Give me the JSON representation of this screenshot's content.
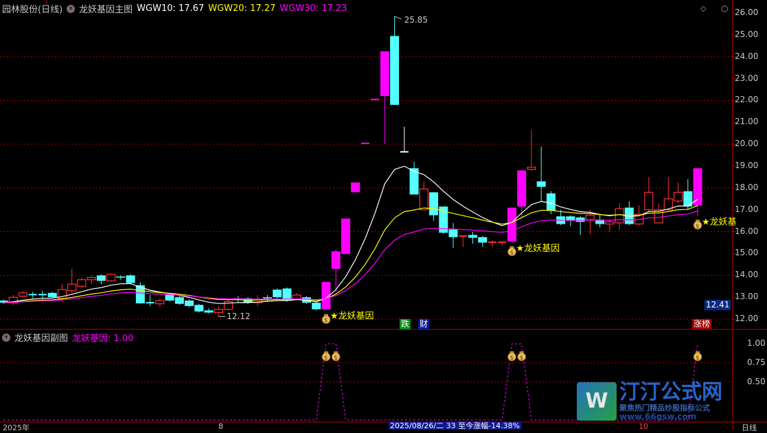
{
  "header": {
    "stock": "园林股份(日线)",
    "indicator": "龙妖基因主图",
    "ma10": "WGW10: 17.67",
    "ma20": "WGW20: 17.27",
    "ma30": "WGW30: 17.23"
  },
  "sub_header": {
    "indicator": "龙妖基因副图",
    "value": "龙妖基因: 1.00"
  },
  "colors": {
    "up": "#ff3232",
    "down": "#54ffff",
    "limit": "#ff00ff",
    "ma10": "#ffffff",
    "ma20": "#ffff00",
    "ma30": "#ff00ff",
    "grid": "#b00000",
    "signal": "#ff00ff"
  },
  "price_axis": [
    "26.00",
    "25.00",
    "24.00",
    "23.00",
    "22.00",
    "21.00",
    "20.00",
    "19.00",
    "18.00",
    "17.00",
    "16.00",
    "15.00",
    "14.00",
    "13.00",
    "12.00"
  ],
  "current_price": "12.41",
  "sub_axis": [
    "1.00",
    "0.75",
    "0.50"
  ],
  "candles": [
    [
      12.85,
      12.9,
      12.7,
      12.75,
      "d"
    ],
    [
      12.75,
      13.1,
      12.65,
      13.0,
      "u"
    ],
    [
      13.05,
      13.3,
      13.0,
      13.2,
      "u"
    ],
    [
      13.1,
      13.25,
      12.95,
      13.12,
      "x"
    ],
    [
      13.1,
      13.3,
      12.9,
      13.12,
      "x"
    ],
    [
      13.2,
      13.25,
      12.95,
      13.0,
      "d"
    ],
    [
      12.95,
      13.6,
      12.8,
      13.35,
      "u"
    ],
    [
      13.3,
      14.3,
      13.2,
      13.6,
      "u"
    ],
    [
      13.5,
      13.9,
      13.4,
      13.8,
      "u"
    ],
    [
      13.8,
      14.0,
      13.6,
      13.9,
      "u"
    ],
    [
      14.0,
      14.05,
      13.6,
      13.75,
      "d"
    ],
    [
      13.75,
      14.1,
      13.7,
      14.05,
      "u"
    ],
    [
      13.95,
      14.0,
      13.8,
      13.9,
      "x"
    ],
    [
      14.0,
      14.05,
      13.6,
      13.65,
      "d"
    ],
    [
      13.55,
      13.7,
      12.7,
      12.72,
      "d"
    ],
    [
      12.75,
      13.1,
      12.6,
      12.72,
      "x"
    ],
    [
      12.7,
      12.95,
      12.55,
      12.85,
      "u"
    ],
    [
      13.15,
      13.2,
      12.8,
      12.85,
      "d"
    ],
    [
      13.0,
      13.1,
      12.65,
      12.7,
      "d"
    ],
    [
      12.85,
      12.9,
      12.55,
      12.6,
      "d"
    ],
    [
      12.65,
      12.7,
      12.3,
      12.35,
      "d"
    ],
    [
      12.4,
      12.5,
      12.25,
      12.3,
      "d"
    ],
    [
      12.3,
      12.6,
      12.12,
      12.45,
      "u"
    ],
    [
      12.45,
      12.95,
      12.4,
      12.8,
      "u"
    ],
    [
      12.95,
      13.05,
      12.75,
      12.88,
      "d"
    ],
    [
      12.95,
      13.0,
      12.7,
      12.75,
      "d"
    ],
    [
      12.75,
      13.1,
      12.6,
      12.9,
      "u"
    ],
    [
      13.0,
      13.1,
      12.8,
      12.95,
      "d"
    ],
    [
      13.35,
      13.4,
      12.95,
      13.0,
      "d"
    ],
    [
      13.4,
      13.45,
      12.8,
      12.85,
      "d"
    ],
    [
      12.9,
      13.2,
      12.85,
      13.1,
      "u"
    ],
    [
      13.0,
      13.05,
      12.7,
      12.75,
      "d"
    ],
    [
      12.75,
      12.78,
      12.4,
      12.45,
      "d"
    ],
    [
      12.45,
      13.7,
      12.42,
      13.7,
      "m"
    ],
    [
      14.3,
      15.2,
      13.25,
      15.1,
      "m"
    ],
    [
      14.98,
      16.6,
      14.98,
      16.6,
      "m"
    ],
    [
      17.8,
      18.25,
      17.8,
      18.25,
      "m"
    ],
    [
      20.04,
      20.04,
      20.04,
      20.04,
      "m"
    ],
    [
      22.05,
      22.05,
      22.05,
      22.05,
      "m"
    ],
    [
      22.2,
      24.25,
      20.0,
      24.25,
      "m"
    ],
    [
      24.95,
      25.85,
      21.8,
      21.8,
      "d"
    ],
    [
      19.65,
      20.8,
      19.65,
      19.65,
      "w"
    ],
    [
      18.9,
      19.2,
      17.7,
      17.7,
      "d"
    ],
    [
      17.0,
      18.3,
      17.0,
      17.95,
      "u"
    ],
    [
      17.8,
      17.8,
      16.5,
      16.75,
      "d"
    ],
    [
      17.15,
      17.15,
      15.9,
      15.95,
      "d"
    ],
    [
      16.1,
      16.4,
      15.25,
      15.75,
      "d"
    ],
    [
      15.8,
      15.8,
      15.3,
      15.8,
      "u"
    ],
    [
      15.85,
      16.0,
      15.45,
      15.72,
      "d"
    ],
    [
      15.75,
      15.8,
      15.3,
      15.5,
      "d"
    ],
    [
      15.5,
      15.6,
      15.3,
      15.52,
      "u"
    ],
    [
      15.5,
      15.5,
      15.35,
      15.52,
      "u"
    ],
    [
      15.55,
      17.1,
      15.5,
      17.1,
      "m"
    ],
    [
      17.15,
      18.8,
      16.6,
      18.8,
      "m"
    ],
    [
      18.85,
      20.65,
      18.8,
      18.95,
      "u"
    ],
    [
      18.3,
      19.9,
      17.35,
      18.05,
      "d"
    ],
    [
      17.75,
      17.85,
      16.8,
      16.95,
      "d"
    ],
    [
      16.7,
      17.0,
      16.3,
      16.35,
      "d"
    ],
    [
      16.7,
      16.75,
      16.25,
      16.5,
      "d"
    ],
    [
      16.65,
      16.7,
      15.85,
      16.45,
      "d"
    ],
    [
      16.55,
      17.0,
      15.9,
      16.75,
      "u"
    ],
    [
      16.55,
      16.8,
      16.2,
      16.35,
      "d"
    ],
    [
      16.35,
      16.55,
      16.0,
      16.45,
      "u"
    ],
    [
      16.4,
      17.3,
      16.1,
      17.05,
      "u"
    ],
    [
      17.1,
      17.4,
      16.3,
      16.35,
      "d"
    ],
    [
      16.35,
      17.2,
      16.3,
      16.8,
      "u"
    ],
    [
      17.0,
      18.5,
      16.9,
      17.8,
      "u"
    ],
    [
      16.4,
      17.3,
      16.4,
      17.0,
      "u"
    ],
    [
      17.0,
      18.5,
      16.95,
      17.5,
      "u"
    ],
    [
      17.4,
      18.25,
      17.3,
      17.8,
      "u"
    ],
    [
      17.85,
      18.4,
      17.0,
      17.15,
      "d"
    ],
    [
      17.2,
      18.9,
      16.7,
      18.9,
      "m"
    ]
  ],
  "high_label": {
    "index": 40,
    "price": 25.85,
    "text": "25.85"
  },
  "low_label": {
    "index": 22,
    "price": 12.12,
    "text": "12.12"
  },
  "signals": [
    {
      "index": 33,
      "text": "★龙妖基因",
      "icon": "person-icon"
    },
    {
      "index": 52,
      "text": "★龙妖基因",
      "icon": "money-bag-icon"
    },
    {
      "index": 71,
      "text": "★龙妖基",
      "icon": "money-bag-icon"
    }
  ],
  "sub_signal_on": [
    33,
    34,
    52,
    53,
    71
  ],
  "tags": {
    "fall": "跌",
    "wealth": "财",
    "rank": "涨榜"
  },
  "bottom": {
    "year": "2025年",
    "month8": "8",
    "cursor": "2025/08/26/二 33 至今涨幅-14.38%",
    "month10": "10",
    "period": "日线"
  },
  "logo": {
    "mark": "W",
    "name": "汀汀公式网",
    "slogan": "聚焦热门精品炒股指标公式",
    "url": "www.66gsw.com"
  }
}
